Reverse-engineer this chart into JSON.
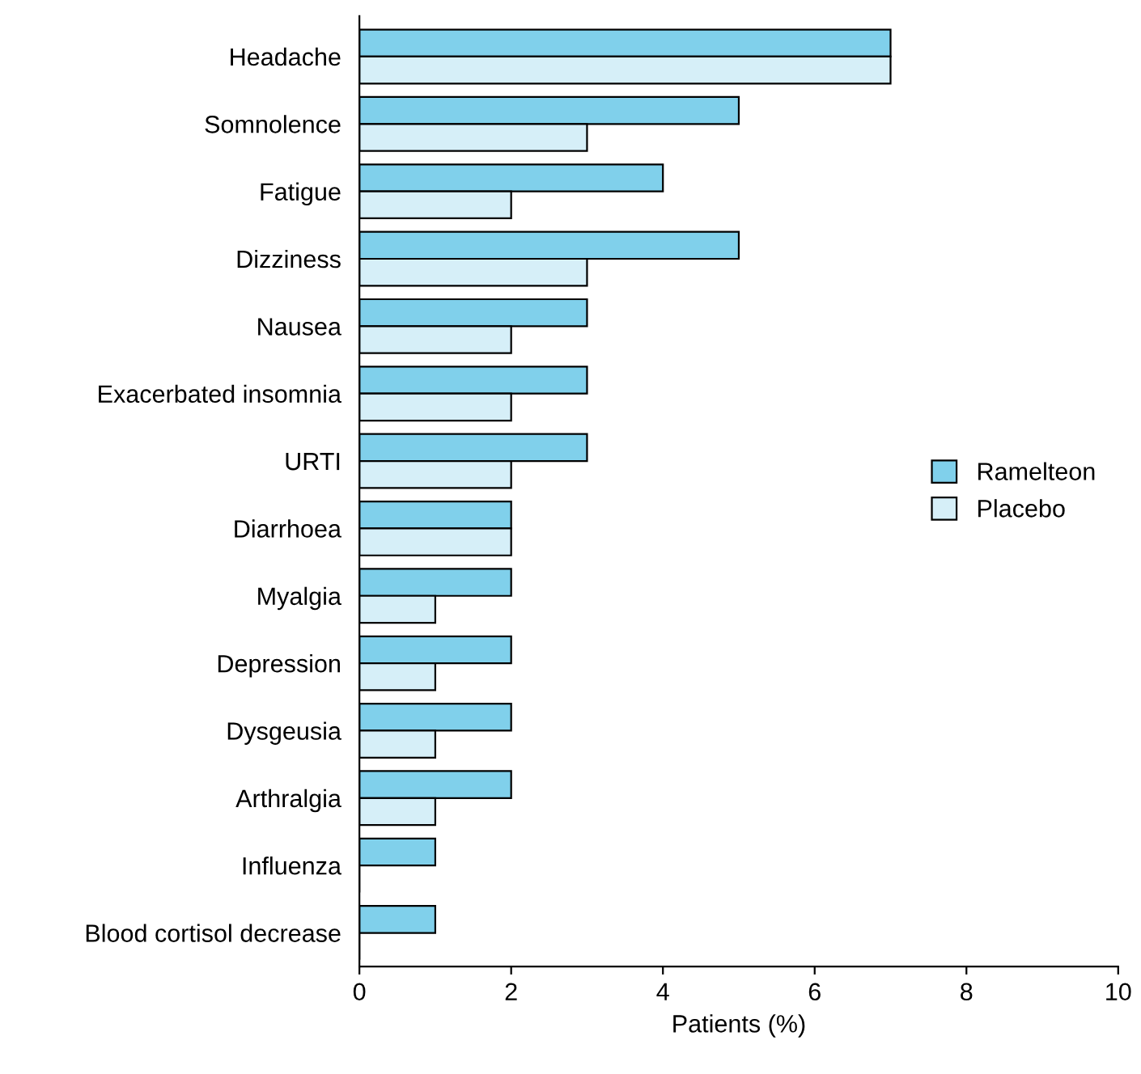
{
  "chart_data": {
    "type": "bar",
    "orientation": "horizontal",
    "xlabel": "Patients (%)",
    "categories": [
      "Headache",
      "Somnolence",
      "Fatigue",
      "Dizziness",
      "Nausea",
      "Exacerbated insomnia",
      "URTI",
      "Diarrhoea",
      "Myalgia",
      "Depression",
      "Dysgeusia",
      "Arthralgia",
      "Influenza",
      "Blood cortisol decrease"
    ],
    "series": [
      {
        "name": "Ramelteon",
        "color": "#80d0eb",
        "values": [
          7,
          5,
          4,
          5,
          3,
          3,
          3,
          2,
          2,
          2,
          2,
          2,
          1,
          1
        ]
      },
      {
        "name": "Placebo",
        "color": "#d6eff8",
        "values": [
          7,
          3,
          2,
          3,
          2,
          2,
          2,
          2,
          1,
          1,
          1,
          1,
          0,
          0
        ]
      }
    ],
    "xlim": [
      0,
      10
    ],
    "xticks": [
      0,
      2,
      4,
      6,
      8,
      10
    ],
    "grid": false,
    "legend": "right"
  }
}
